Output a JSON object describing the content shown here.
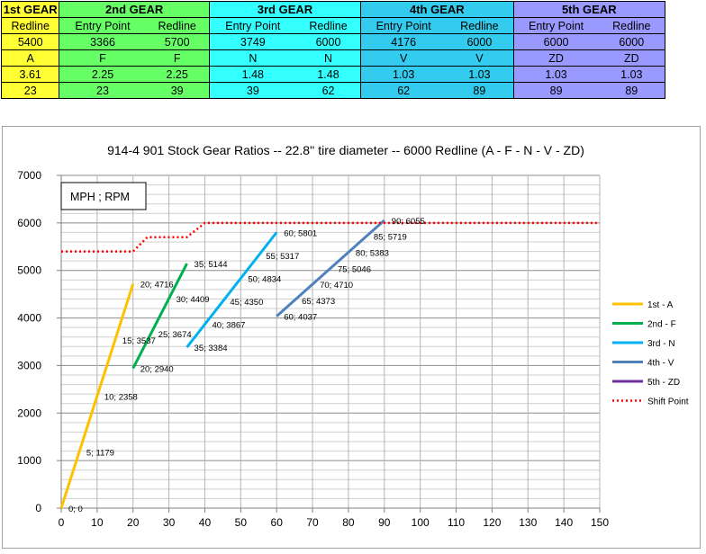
{
  "gear_table": {
    "groups": [
      {
        "name": "1st GEAR",
        "color": "#ffff33",
        "cols": 1
      },
      {
        "name": "2nd GEAR",
        "color": "#66ff66",
        "cols": 2
      },
      {
        "name": "3rd GEAR",
        "color": "#33ffff",
        "cols": 2
      },
      {
        "name": "4th GEAR",
        "color": "#33ccee",
        "cols": 2
      },
      {
        "name": "5th GEAR",
        "color": "#9999ff",
        "cols": 2
      }
    ],
    "rows": [
      [
        "Redline",
        "Entry Point",
        "Redline",
        "Entry Point",
        "Redline",
        "Entry Point",
        "Redline",
        "Entry Point",
        "Redline"
      ],
      [
        "5400",
        "3366",
        "5700",
        "3749",
        "6000",
        "4176",
        "6000",
        "6000",
        "6000"
      ],
      [
        "A",
        "F",
        "F",
        "N",
        "N",
        "V",
        "V",
        "ZD",
        "ZD"
      ],
      [
        "3.61",
        "2.25",
        "2.25",
        "1.48",
        "1.48",
        "1.03",
        "1.03",
        "1.03",
        "1.03"
      ],
      [
        "23",
        "23",
        "39",
        "39",
        "62",
        "62",
        "89",
        "89",
        "89"
      ]
    ]
  },
  "chart_data": {
    "type": "line",
    "title": "914-4 901 Stock Gear Ratios -- 22.8'' tire diameter -- 6000 Redline   (A - F - N - V - ZD)",
    "annotation": "MPH ; RPM",
    "xlim": [
      0,
      150
    ],
    "ylim": [
      0,
      7000
    ],
    "xticks": [
      0,
      10,
      20,
      30,
      40,
      50,
      60,
      70,
      80,
      90,
      100,
      110,
      120,
      130,
      140,
      150
    ],
    "yticks": [
      0,
      1000,
      2000,
      3000,
      4000,
      5000,
      6000,
      7000
    ],
    "grid": true,
    "legend_position": "right",
    "series": [
      {
        "name": "1st - A",
        "color": "#ffc000",
        "style": "solid",
        "points": [
          [
            0,
            0
          ],
          [
            20,
            4716
          ]
        ]
      },
      {
        "name": "2nd - F",
        "color": "#00b050",
        "style": "solid",
        "points": [
          [
            20,
            2940
          ],
          [
            35,
            5144
          ]
        ]
      },
      {
        "name": "3rd - N",
        "color": "#00b0f0",
        "style": "solid",
        "points": [
          [
            35,
            3384
          ],
          [
            60,
            5801
          ]
        ]
      },
      {
        "name": "4th - V",
        "color": "#4f81bd",
        "style": "solid",
        "points": [
          [
            60,
            4037
          ],
          [
            90,
            6055
          ]
        ]
      },
      {
        "name": "5th - ZD",
        "color": "#7030a0",
        "style": "solid",
        "points": []
      },
      {
        "name": "Shift Point",
        "color": "#ff0000",
        "style": "dotted",
        "points": [
          [
            0,
            5400
          ],
          [
            20,
            5400
          ],
          [
            24,
            5700
          ],
          [
            35,
            5700
          ],
          [
            40,
            6000
          ],
          [
            150,
            6000
          ]
        ]
      }
    ],
    "data_labels": [
      {
        "x": 0,
        "y": 0,
        "text": "0; 0"
      },
      {
        "x": 5,
        "y": 1179,
        "text": "5; 1179"
      },
      {
        "x": 10,
        "y": 2358,
        "text": "10; 2358"
      },
      {
        "x": 15,
        "y": 3537,
        "text": "15; 3537"
      },
      {
        "x": 20,
        "y": 4716,
        "text": "20; 4716"
      },
      {
        "x": 20,
        "y": 2940,
        "text": "20; 2940"
      },
      {
        "x": 25,
        "y": 3674,
        "text": "25; 3674"
      },
      {
        "x": 30,
        "y": 4409,
        "text": "30; 4409"
      },
      {
        "x": 35,
        "y": 5144,
        "text": "35; 5144"
      },
      {
        "x": 35,
        "y": 3384,
        "text": "35; 3384"
      },
      {
        "x": 40,
        "y": 3867,
        "text": "40; 3867"
      },
      {
        "x": 45,
        "y": 4350,
        "text": "45; 4350"
      },
      {
        "x": 50,
        "y": 4834,
        "text": "50; 4834"
      },
      {
        "x": 55,
        "y": 5317,
        "text": "55; 5317"
      },
      {
        "x": 60,
        "y": 5801,
        "text": "60; 5801"
      },
      {
        "x": 60,
        "y": 4037,
        "text": "60; 4037"
      },
      {
        "x": 65,
        "y": 4373,
        "text": "65; 4373"
      },
      {
        "x": 70,
        "y": 4710,
        "text": "70; 4710"
      },
      {
        "x": 75,
        "y": 5046,
        "text": "75; 5046"
      },
      {
        "x": 80,
        "y": 5383,
        "text": "80; 5383"
      },
      {
        "x": 85,
        "y": 5719,
        "text": "85; 5719"
      },
      {
        "x": 90,
        "y": 6055,
        "text": "90; 6055"
      }
    ]
  }
}
